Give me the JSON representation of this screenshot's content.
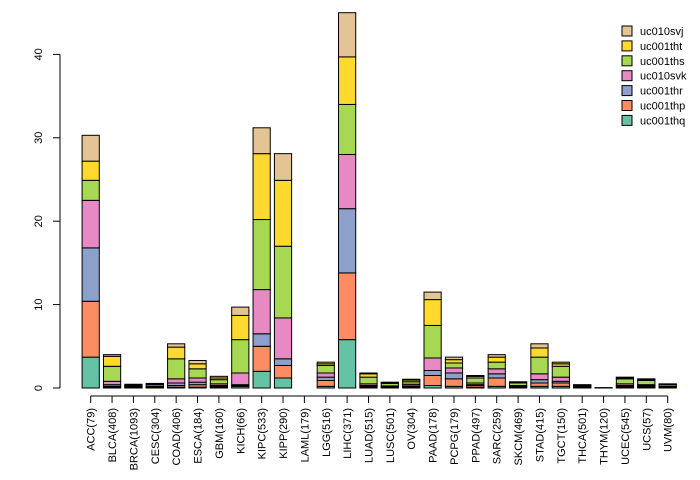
{
  "chart_data": {
    "type": "bar",
    "stacked": true,
    "title": "",
    "xlabel": "",
    "ylabel": "",
    "ylim": [
      0,
      45
    ],
    "yticks": [
      0,
      10,
      20,
      30,
      40
    ],
    "legend_position": "top-right",
    "categories": [
      "ACC(79)",
      "BLCA(408)",
      "BRCA(1093)",
      "CESC(304)",
      "COAD(406)",
      "ESCA(184)",
      "GBM(160)",
      "KICH(66)",
      "KIPC(533)",
      "KIPP(290)",
      "LAML(179)",
      "LGG(516)",
      "LIHC(371)",
      "LUAD(515)",
      "LUSC(501)",
      "OV(304)",
      "PAAD(178)",
      "PCPG(179)",
      "PPAD(497)",
      "SARC(259)",
      "SKCM(469)",
      "STAD(415)",
      "TGCT(150)",
      "THCA(501)",
      "THYM(120)",
      "UCEC(545)",
      "UCS(57)",
      "UVM(80)"
    ],
    "series": [
      {
        "name": "uc001thq",
        "color": "#66c2a5",
        "values": [
          3.7,
          0.1,
          0.05,
          0.05,
          0.1,
          0.1,
          0.1,
          0.2,
          2.0,
          1.2,
          0.0,
          0.2,
          5.8,
          0.1,
          0.05,
          0.05,
          0.3,
          0.2,
          0.1,
          0.2,
          0.05,
          0.2,
          0.2,
          0.05,
          0.0,
          0.1,
          0.1,
          0.05
        ]
      },
      {
        "name": "uc001thp",
        "color": "#fc8d62",
        "values": [
          6.7,
          0.1,
          0.05,
          0.05,
          0.2,
          0.3,
          0.1,
          0.1,
          3.0,
          1.5,
          0.0,
          0.7,
          8.0,
          0.1,
          0.05,
          0.1,
          1.2,
          0.9,
          0.2,
          1.0,
          0.05,
          0.4,
          0.4,
          0.05,
          0.0,
          0.1,
          0.1,
          0.05
        ]
      },
      {
        "name": "uc001thr",
        "color": "#8da0cb",
        "values": [
          6.4,
          0.2,
          0.05,
          0.05,
          0.3,
          0.3,
          0.1,
          0.1,
          1.5,
          0.8,
          0.0,
          0.4,
          7.7,
          0.1,
          0.05,
          0.1,
          0.6,
          0.7,
          0.1,
          0.5,
          0.1,
          0.4,
          0.2,
          0.05,
          0.0,
          0.1,
          0.1,
          0.05
        ]
      },
      {
        "name": "uc010svk",
        "color": "#e78ac3",
        "values": [
          5.7,
          0.4,
          0.05,
          0.05,
          0.5,
          0.5,
          0.2,
          1.4,
          5.3,
          4.9,
          0.0,
          0.5,
          6.5,
          0.2,
          0.1,
          0.2,
          1.5,
          0.6,
          0.2,
          0.6,
          0.1,
          0.7,
          0.5,
          0.05,
          0.0,
          0.2,
          0.1,
          0.05
        ]
      },
      {
        "name": "uc001ths",
        "color": "#a6d854",
        "values": [
          2.4,
          1.8,
          0.1,
          0.2,
          2.4,
          1.1,
          0.5,
          4.0,
          8.4,
          8.6,
          0.0,
          0.9,
          6.0,
          0.8,
          0.3,
          0.3,
          3.9,
          0.6,
          0.6,
          0.8,
          0.3,
          2.0,
          1.3,
          0.1,
          0.05,
          0.6,
          0.5,
          0.2
        ]
      },
      {
        "name": "uc001tht",
        "color": "#ffd92f",
        "values": [
          2.3,
          1.2,
          0.1,
          0.1,
          1.4,
          0.6,
          0.2,
          2.9,
          7.9,
          7.9,
          0.0,
          0.2,
          5.7,
          0.4,
          0.1,
          0.2,
          3.1,
          0.4,
          0.2,
          0.6,
          0.1,
          1.1,
          0.3,
          0.05,
          0.0,
          0.1,
          0.1,
          0.05
        ]
      },
      {
        "name": "uc010svj",
        "color": "#e5c494",
        "values": [
          3.1,
          0.2,
          0.05,
          0.05,
          0.4,
          0.4,
          0.2,
          1.0,
          3.1,
          3.2,
          0.0,
          0.2,
          5.3,
          0.1,
          0.05,
          0.1,
          0.9,
          0.3,
          0.1,
          0.3,
          0.05,
          0.5,
          0.2,
          0.05,
          0.0,
          0.1,
          0.1,
          0.05
        ]
      }
    ]
  }
}
